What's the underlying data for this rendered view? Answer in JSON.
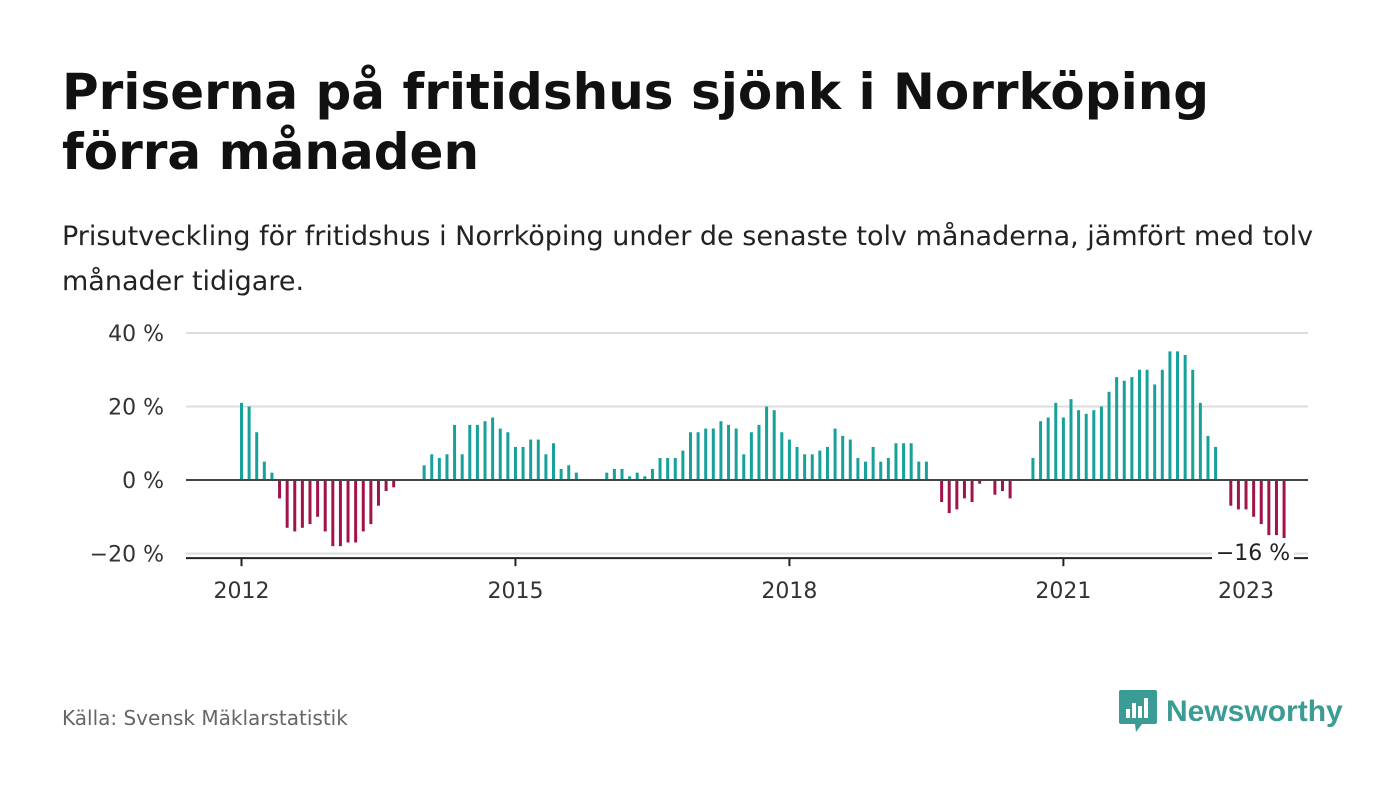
{
  "title": "Priserna på fritidshus sjönk i Norrköping förra månaden",
  "subtitle": "Prisutveckling för fritidshus i Norrköping under de senaste tolv månaderna, jämfört med tolv månader tidigare.",
  "source": "Källa: Svensk Mäklarstatistik",
  "brand": {
    "name": "Newsworthy",
    "icon": "newsworthy-logo-icon"
  },
  "colors": {
    "positive": "#17a19a",
    "negative": "#a3134b",
    "grid": "#dddddd",
    "zero_line": "#444444",
    "brand": "#3b9b95"
  },
  "chart_data": {
    "type": "bar",
    "x_start": "2012-01",
    "x_unit": "month",
    "xticks": [
      "2012",
      "2015",
      "2018",
      "2021",
      "2023"
    ],
    "yticks": [
      "40 %",
      "20 %",
      "0 %",
      "−20 %"
    ],
    "ylim": [
      -21,
      40
    ],
    "grid": true,
    "last_label": "−16 %",
    "values": [
      21,
      20,
      13,
      5,
      2,
      -5,
      -13,
      -14,
      -13,
      -12,
      -10,
      -14,
      -18,
      -18,
      -17,
      -17,
      -14,
      -12,
      -7,
      -3,
      -2,
      0,
      0,
      0,
      4,
      7,
      6,
      7,
      15,
      7,
      15,
      15,
      16,
      17,
      14,
      13,
      9,
      9,
      11,
      11,
      7,
      10,
      3,
      4,
      2,
      0,
      0,
      0,
      2,
      3,
      3,
      1,
      2,
      1,
      3,
      6,
      6,
      6,
      8,
      13,
      13,
      14,
      14,
      16,
      15,
      14,
      7,
      13,
      15,
      20,
      19,
      13,
      11,
      9,
      7,
      7,
      8,
      9,
      14,
      12,
      11,
      6,
      5,
      9,
      5,
      6,
      10,
      10,
      10,
      5,
      5,
      0,
      -6,
      -9,
      -8,
      -5,
      -6,
      -1,
      0,
      -4,
      -3,
      -5,
      0,
      0,
      6,
      16,
      17,
      21,
      17,
      22,
      19,
      18,
      19,
      20,
      24,
      28,
      27,
      28,
      30,
      30,
      26,
      30,
      35,
      35,
      34,
      30,
      21,
      12,
      9,
      0,
      -7,
      -8,
      -8,
      -10,
      -12,
      -15,
      -15,
      -16
    ]
  }
}
